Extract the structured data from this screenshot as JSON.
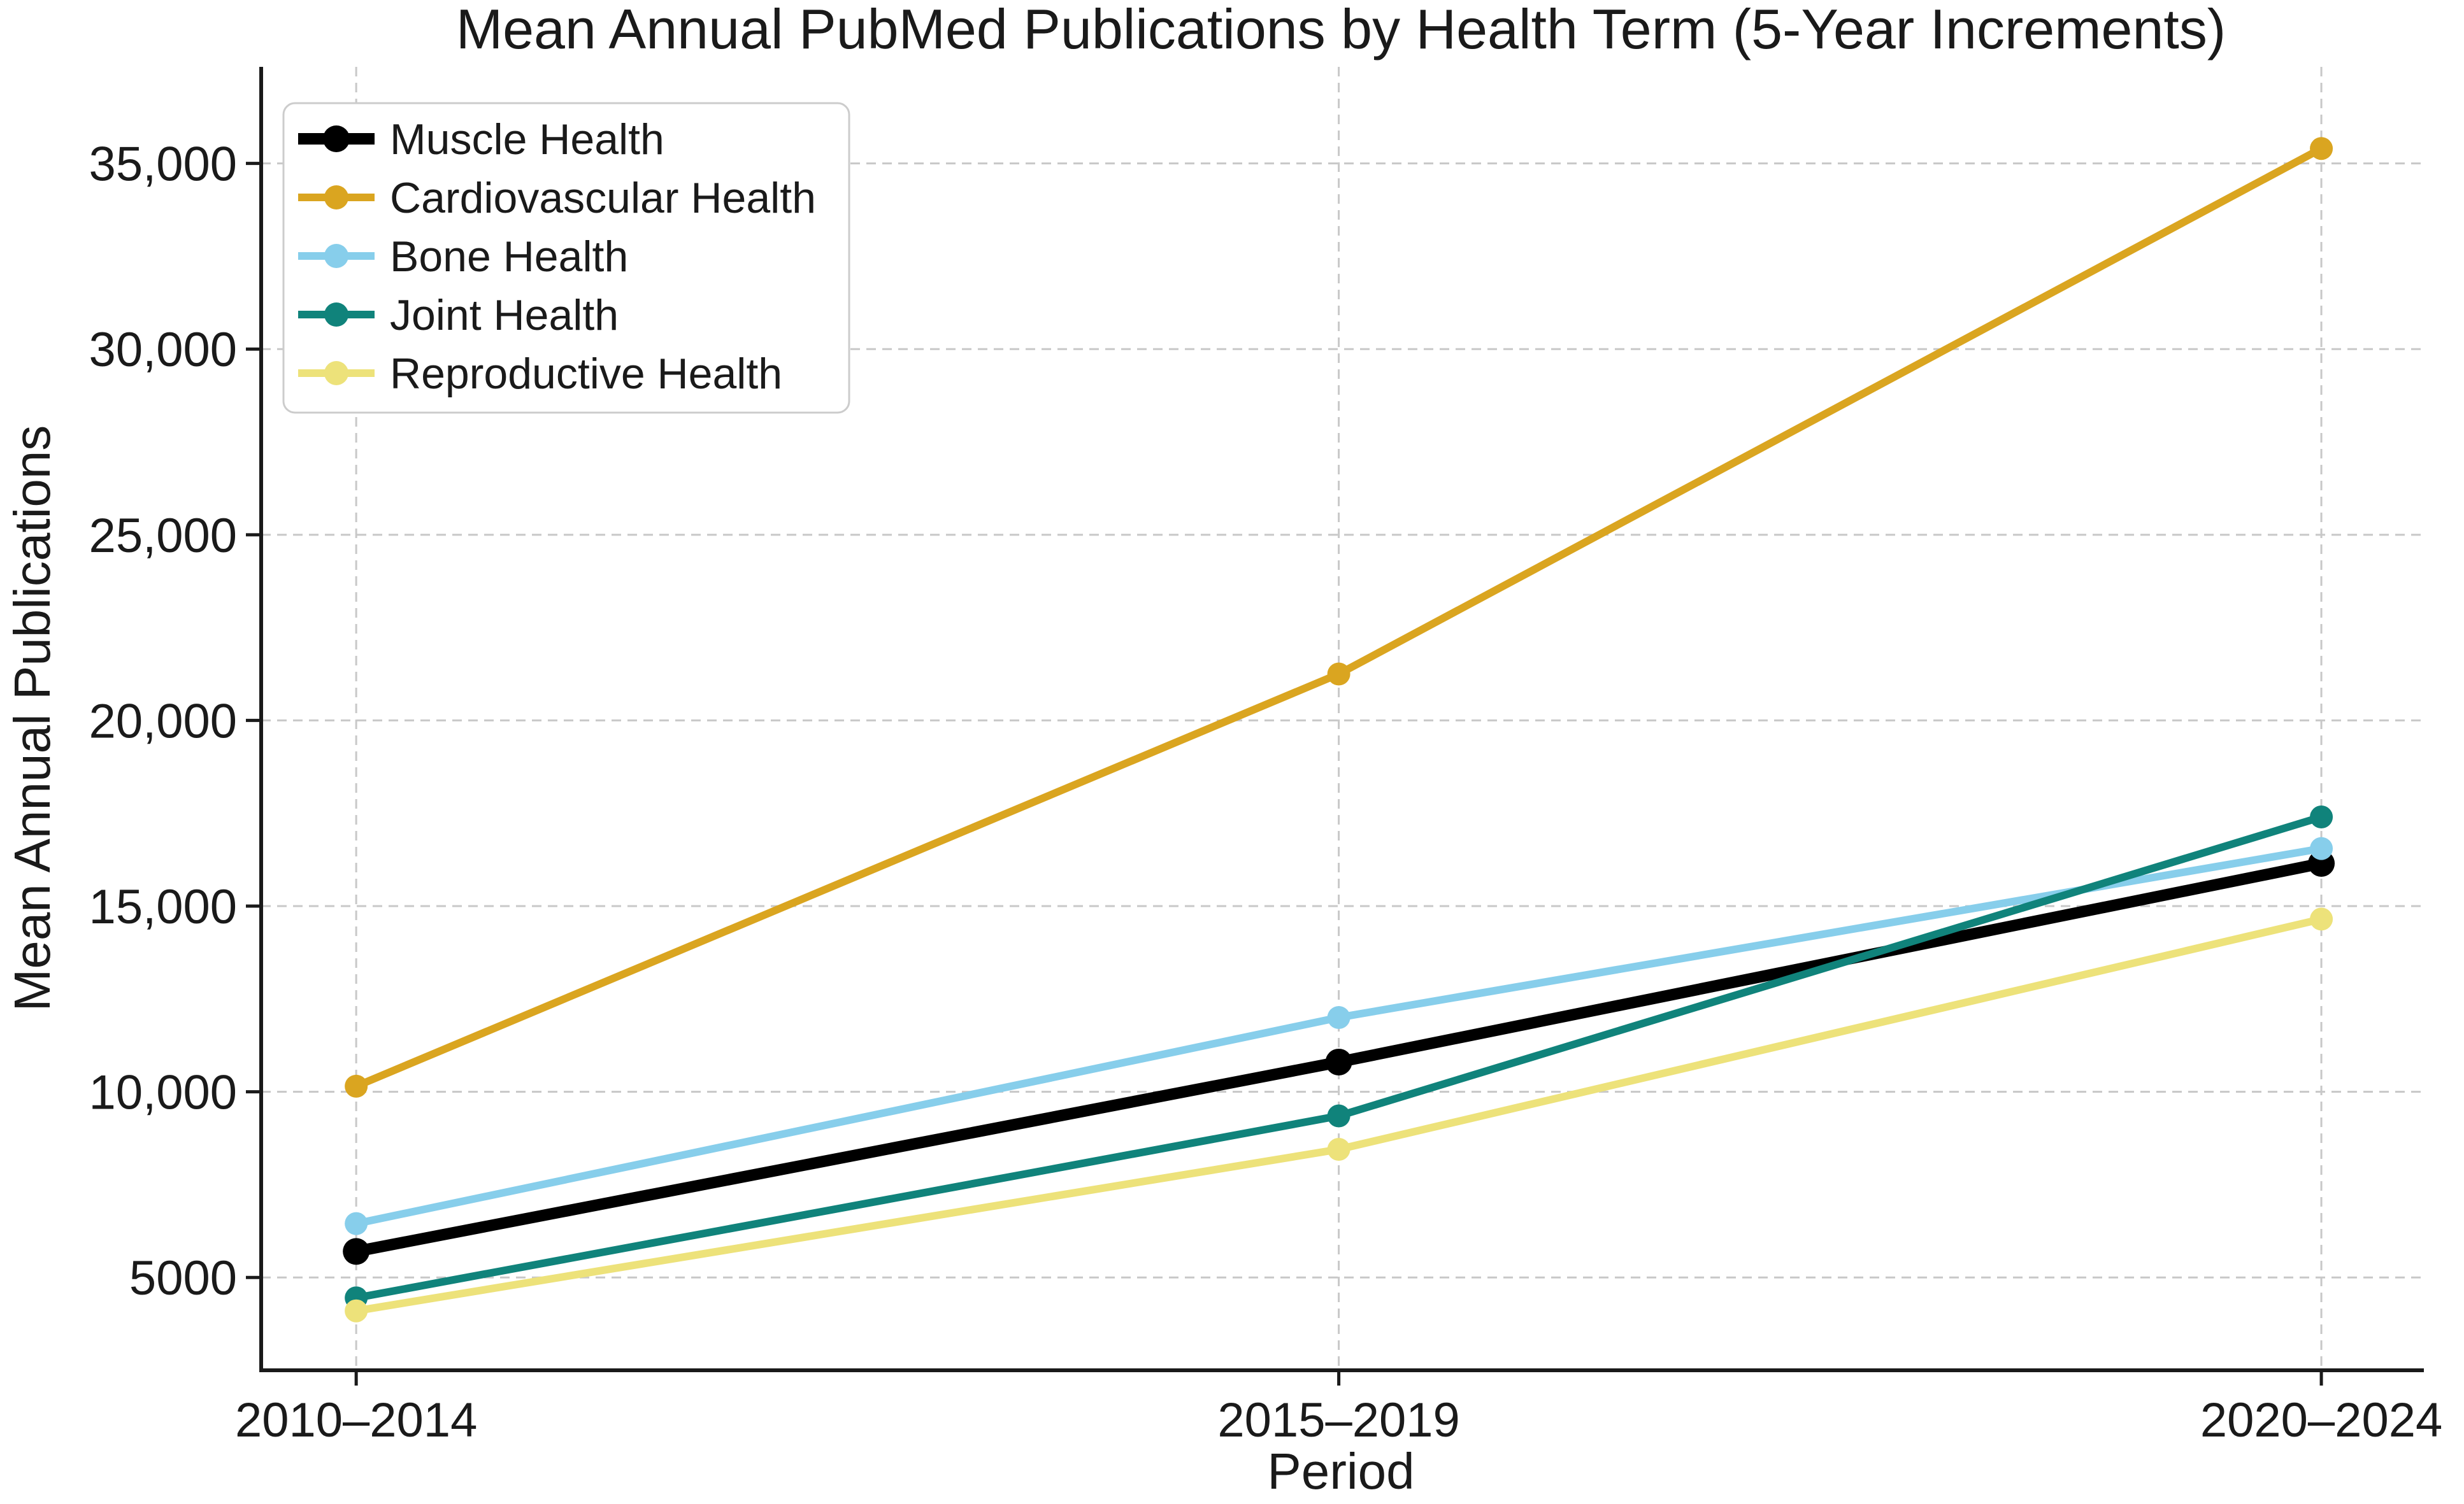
{
  "chart_data": {
    "type": "line",
    "title": "Mean Annual PubMed Publications by Health Term (5-Year Increments)",
    "xlabel": "Period",
    "ylabel": "Mean Annual Publications",
    "categories": [
      "2010–2014",
      "2015–2019",
      "2020–2024"
    ],
    "series": [
      {
        "name": "Muscle Health",
        "color": "#000000",
        "linewidth": 18,
        "values": [
          5700,
          10800,
          16150
        ]
      },
      {
        "name": "Cardiovascular Health",
        "color": "#DAA520",
        "linewidth": 12,
        "values": [
          10150,
          21250,
          35400
        ]
      },
      {
        "name": "Bone Health",
        "color": "#87CEEB",
        "linewidth": 12,
        "values": [
          6450,
          12000,
          16550
        ]
      },
      {
        "name": "Joint Health",
        "color": "#10837B",
        "linewidth": 12,
        "values": [
          4450,
          9350,
          17400
        ]
      },
      {
        "name": "Reproductive Health",
        "color": "#EDE27A",
        "linewidth": 12,
        "values": [
          4100,
          8450,
          14650
        ]
      }
    ],
    "yticks": [
      {
        "value": 5000,
        "label": "5000"
      },
      {
        "value": 10000,
        "label": "10,000"
      },
      {
        "value": 15000,
        "label": "15,000"
      },
      {
        "value": 20000,
        "label": "20,000"
      },
      {
        "value": 25000,
        "label": "25,000"
      },
      {
        "value": 30000,
        "label": "30,000"
      },
      {
        "value": 35000,
        "label": "35,000"
      }
    ],
    "ylim": [
      2500,
      37600
    ],
    "grid": true,
    "grid_style": "dashed",
    "legend_position": "upper left",
    "text_color": "#1a1a1a",
    "grid_color": "#c8c8c8"
  }
}
